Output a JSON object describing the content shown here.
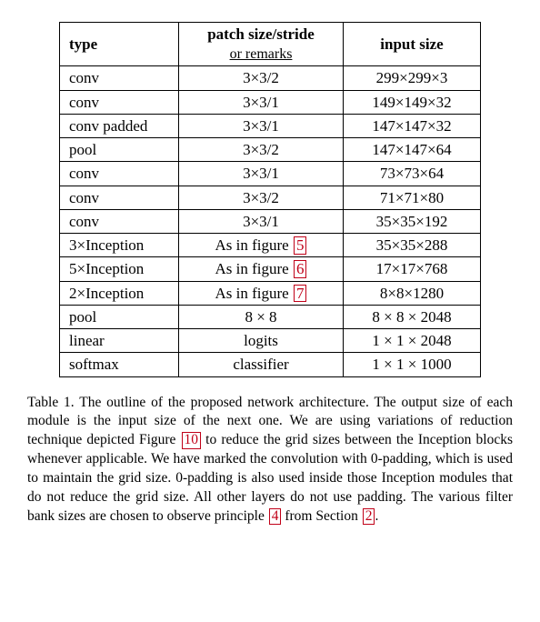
{
  "table": {
    "headers": {
      "type": "type",
      "patch": "patch size/stride",
      "patch_sub": "or remarks",
      "input": "input size"
    },
    "rows": [
      {
        "type": "conv",
        "patch": "3×3/2",
        "input": "299×299×3"
      },
      {
        "type": "conv",
        "patch": "3×3/1",
        "input": "149×149×32"
      },
      {
        "type": "conv padded",
        "patch": "3×3/1",
        "input": "147×147×32"
      },
      {
        "type": "pool",
        "patch": "3×3/2",
        "input": "147×147×64"
      },
      {
        "type": "conv",
        "patch": "3×3/1",
        "input": "73×73×64"
      },
      {
        "type": "conv",
        "patch": "3×3/2",
        "input": "71×71×80"
      },
      {
        "type": "conv",
        "patch": "3×3/1",
        "input": "35×35×192"
      },
      {
        "type": "3×Inception",
        "patch_prefix": "As in figure ",
        "ref": "5",
        "input": "35×35×288"
      },
      {
        "type": "5×Inception",
        "patch_prefix": "As in figure ",
        "ref": "6",
        "input": "17×17×768"
      },
      {
        "type": "2×Inception",
        "patch_prefix": "As in figure ",
        "ref": "7",
        "input": "8×8×1280"
      },
      {
        "type": "pool",
        "patch": "8 × 8",
        "input": "8 × 8 × 2048"
      },
      {
        "type": "linear",
        "patch": "logits",
        "input": "1 × 1 × 2048"
      },
      {
        "type": "softmax",
        "patch": "classifier",
        "input": "1 × 1 × 1000"
      }
    ]
  },
  "caption": {
    "label": "Table 1.",
    "seg1": " The outline of the proposed network architecture. The output size of each module is the input size of the next one. We are using variations of reduction technique depicted Figure ",
    "ref1": "10",
    "seg2": " to reduce the grid sizes between the Inception blocks whenever applicable. We have marked the convolution with 0-padding, which is used to maintain the grid size. 0-padding is also used inside those Inception modules that do not reduce the grid size. All other layers do not use padding. The various filter bank sizes are chosen to observe principle ",
    "ref2": "4",
    "seg3": " from Section ",
    "ref3": "2",
    "seg4": "."
  },
  "colors": {
    "ref_link": "#c00018",
    "text": "#000000",
    "background": "#ffffff"
  }
}
